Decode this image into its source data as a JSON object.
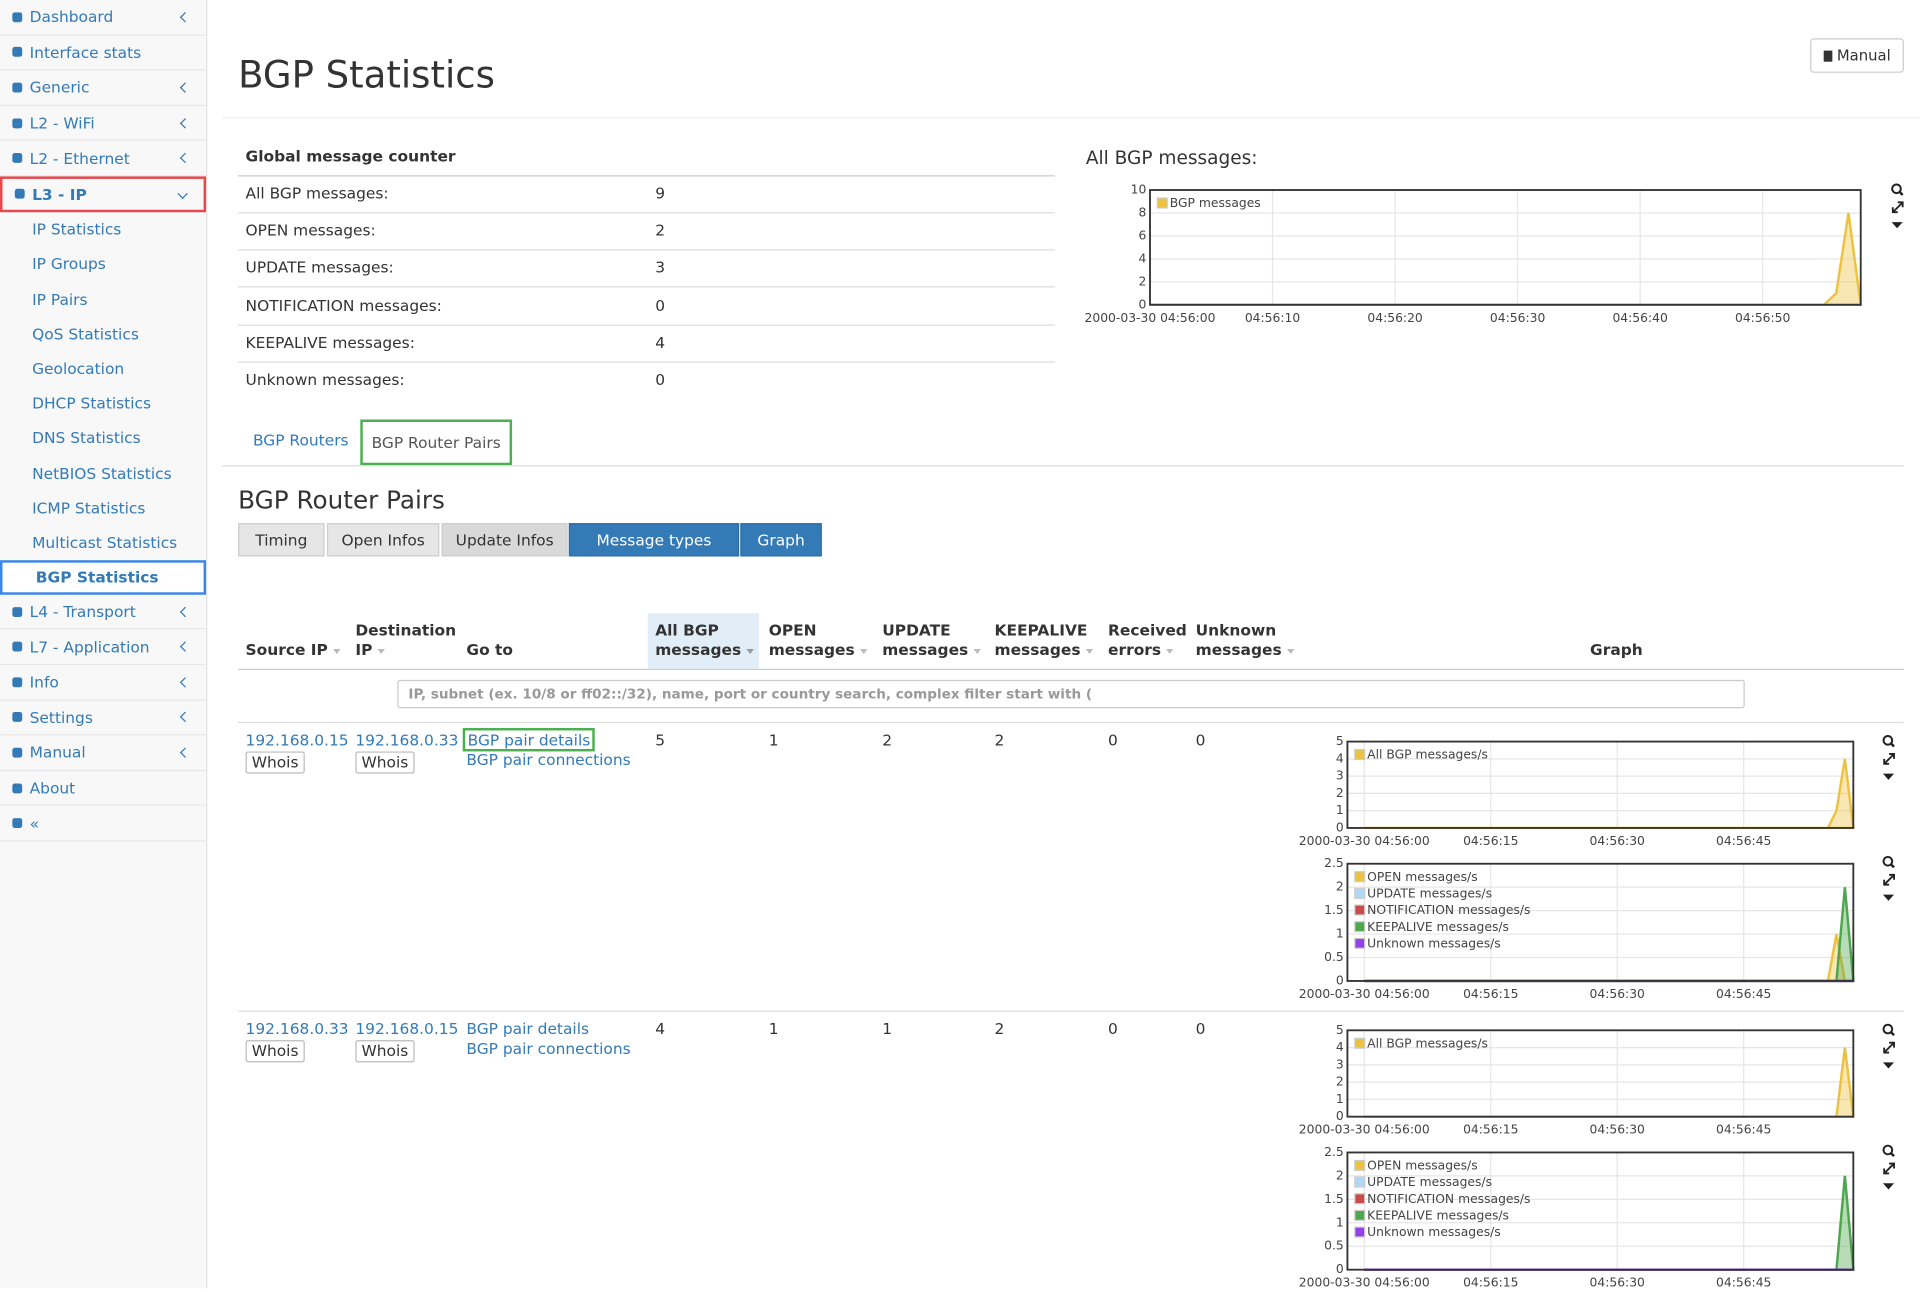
{
  "sidebar": {
    "items": [
      {
        "label": "Dashboard",
        "arrow": true
      },
      {
        "label": "Interface stats",
        "arrow": false
      },
      {
        "label": "Generic",
        "arrow": true
      },
      {
        "label": "L2 - WiFi",
        "arrow": true
      },
      {
        "label": "L2 - Ethernet",
        "arrow": true
      },
      {
        "label": "L3 - IP",
        "arrow": true,
        "expanded": true,
        "outline": "#e8474b",
        "children": [
          {
            "label": "IP Statistics"
          },
          {
            "label": "IP Groups"
          },
          {
            "label": "IP Pairs"
          },
          {
            "label": "QoS Statistics"
          },
          {
            "label": "Geolocation"
          },
          {
            "label": "DHCP Statistics"
          },
          {
            "label": "DNS Statistics"
          },
          {
            "label": "NetBIOS Statistics"
          },
          {
            "label": "ICMP Statistics"
          },
          {
            "label": "Multicast Statistics"
          },
          {
            "label": "BGP Statistics",
            "active": true,
            "outline": "#3a86e8"
          }
        ]
      },
      {
        "label": "L4 - Transport",
        "arrow": true
      },
      {
        "label": "L7 - Application",
        "arrow": true
      },
      {
        "label": "Info",
        "arrow": true
      },
      {
        "label": "Settings",
        "arrow": true
      },
      {
        "label": "Manual",
        "arrow": true
      },
      {
        "label": "About",
        "arrow": false
      },
      {
        "label": "«",
        "arrow": false
      }
    ]
  },
  "header": {
    "title": "BGP Statistics",
    "manual_button": "Manual"
  },
  "global_counter": {
    "heading": "Global message counter",
    "rows": [
      [
        "All BGP messages:",
        "9"
      ],
      [
        "OPEN messages:",
        "2"
      ],
      [
        "UPDATE messages:",
        "3"
      ],
      [
        "NOTIFICATION messages:",
        "0"
      ],
      [
        "KEEPALIVE messages:",
        "4"
      ],
      [
        "Unknown messages:",
        "0"
      ]
    ]
  },
  "global_chart": {
    "type": "area",
    "title": "All BGP messages:",
    "x": [
      0,
      55,
      56,
      57,
      58
    ],
    "xlim": [
      0,
      58
    ],
    "xticks": [
      {
        "value": 0,
        "label": "2000-03-30 04:56:00"
      },
      {
        "value": 10,
        "label": "04:56:10"
      },
      {
        "value": 20,
        "label": "04:56:20"
      },
      {
        "value": 30,
        "label": "04:56:30"
      },
      {
        "value": 40,
        "label": "04:56:40"
      },
      {
        "value": 50,
        "label": "04:56:50"
      }
    ],
    "ylim": [
      0,
      10
    ],
    "yticks": [
      0,
      2,
      4,
      6,
      8,
      10
    ],
    "grid": true,
    "series": [
      {
        "name": "BGP messages",
        "color": "#edc240",
        "values": [
          0,
          0,
          1,
          8,
          0
        ]
      }
    ]
  },
  "tabs": [
    {
      "label": "BGP Routers"
    },
    {
      "label": "BGP Router Pairs",
      "active": true,
      "outline": "#4caf50"
    }
  ],
  "section_title": "BGP Router Pairs",
  "buttons": [
    {
      "label": "Timing"
    },
    {
      "label": "Open Infos"
    },
    {
      "label": "Update Infos"
    },
    {
      "label": "Message types",
      "active": true
    },
    {
      "label": "Graph",
      "active": true
    }
  ],
  "table": {
    "columns": [
      "Source IP",
      "Destination IP",
      "Go to",
      "All BGP messages",
      "OPEN messages",
      "UPDATE messages",
      "KEEPALIVE messages",
      "Received errors",
      "Unknown messages",
      "Graph"
    ],
    "filter_placeholder": "IP, subnet (ex. 10/8 or ff02::/32), name, port or country search, complex filter start with (",
    "rows": [
      {
        "source": "192.168.0.15",
        "source_whois": "Whois",
        "destination": "192.168.0.33",
        "destination_whois": "Whois",
        "links": [
          "BGP pair details",
          "BGP pair connections"
        ],
        "counts": [
          "5",
          "1",
          "2",
          "2",
          "0",
          "0"
        ],
        "graphs": [
          {
            "type": "area",
            "x": [
              0,
              55,
              56,
              57,
              58
            ],
            "xlim": [
              -2,
              58
            ],
            "xticks": [
              {
                "value": 0,
                "label": "2000-03-30 04:56:00"
              },
              {
                "value": 15,
                "label": "04:56:15"
              },
              {
                "value": 30,
                "label": "04:56:30"
              },
              {
                "value": 45,
                "label": "04:56:45"
              }
            ],
            "ylim": [
              0,
              5
            ],
            "yticks": [
              0,
              1,
              2,
              3,
              4,
              5
            ],
            "grid": true,
            "series": [
              {
                "name": "All BGP messages/s",
                "color": "#edc240",
                "values": [
                  0,
                  0,
                  1,
                  4,
                  0
                ]
              }
            ]
          },
          {
            "type": "area",
            "x": [
              0,
              55,
              56,
              57,
              58
            ],
            "xlim": [
              -2,
              58
            ],
            "xticks": [
              {
                "value": 0,
                "label": "2000-03-30 04:56:00"
              },
              {
                "value": 15,
                "label": "04:56:15"
              },
              {
                "value": 30,
                "label": "04:56:30"
              },
              {
                "value": 45,
                "label": "04:56:45"
              }
            ],
            "ylim": [
              0,
              2.5
            ],
            "yticks": [
              0,
              0.5,
              1,
              1.5,
              2,
              2.5
            ],
            "grid": true,
            "series": [
              {
                "name": "OPEN messages/s",
                "color": "#edc240",
                "values": [
                  0,
                  0,
                  1,
                  0,
                  0
                ]
              },
              {
                "name": "UPDATE messages/s",
                "color": "#afd8f8",
                "values": [
                  0,
                  0,
                  0,
                  0,
                  0
                ]
              },
              {
                "name": "NOTIFICATION messages/s",
                "color": "#cb4b4b",
                "values": [
                  0,
                  0,
                  0,
                  0,
                  0
                ]
              },
              {
                "name": "KEEPALIVE messages/s",
                "color": "#4da74d",
                "values": [
                  0,
                  0,
                  0,
                  2,
                  0
                ]
              },
              {
                "name": "Unknown messages/s",
                "color": "#9440ed",
                "values": [
                  0,
                  0,
                  0,
                  0,
                  0
                ]
              }
            ]
          }
        ]
      },
      {
        "source": "192.168.0.33",
        "source_whois": "Whois",
        "destination": "192.168.0.15",
        "destination_whois": "Whois",
        "links": [
          "BGP pair details",
          "BGP pair connections"
        ],
        "counts": [
          "4",
          "1",
          "1",
          "2",
          "0",
          "0"
        ],
        "graphs": [
          {
            "type": "area",
            "x": [
              0,
              55,
              56,
              57,
              58
            ],
            "xlim": [
              -2,
              58
            ],
            "xticks": [
              {
                "value": 0,
                "label": "2000-03-30 04:56:00"
              },
              {
                "value": 15,
                "label": "04:56:15"
              },
              {
                "value": 30,
                "label": "04:56:30"
              },
              {
                "value": 45,
                "label": "04:56:45"
              }
            ],
            "ylim": [
              0,
              5
            ],
            "yticks": [
              0,
              1,
              2,
              3,
              4,
              5
            ],
            "grid": true,
            "series": [
              {
                "name": "All BGP messages/s",
                "color": "#edc240",
                "values": [
                  0,
                  0,
                  0,
                  4,
                  0
                ]
              }
            ]
          },
          {
            "type": "area",
            "x": [
              0,
              55,
              56,
              57,
              58
            ],
            "xlim": [
              -2,
              58
            ],
            "xticks": [
              {
                "value": 0,
                "label": "2000-03-30 04:56:00"
              },
              {
                "value": 15,
                "label": "04:56:15"
              },
              {
                "value": 30,
                "label": "04:56:30"
              },
              {
                "value": 45,
                "label": "04:56:45"
              }
            ],
            "ylim": [
              0,
              2.5
            ],
            "yticks": [
              0,
              0.5,
              1,
              1.5,
              2,
              2.5
            ],
            "grid": true,
            "series": [
              {
                "name": "OPEN messages/s",
                "color": "#edc240",
                "values": [
                  0,
                  0,
                  0,
                  0,
                  0
                ]
              },
              {
                "name": "UPDATE messages/s",
                "color": "#afd8f8",
                "values": [
                  0,
                  0,
                  0,
                  0,
                  0
                ]
              },
              {
                "name": "NOTIFICATION messages/s",
                "color": "#cb4b4b",
                "values": [
                  0,
                  0,
                  0,
                  0,
                  0
                ]
              },
              {
                "name": "KEEPALIVE messages/s",
                "color": "#4da74d",
                "values": [
                  0,
                  0,
                  0,
                  2,
                  0
                ]
              },
              {
                "name": "Unknown messages/s",
                "color": "#9440ed",
                "values": [
                  0,
                  0,
                  0,
                  0,
                  0
                ]
              }
            ]
          }
        ]
      }
    ]
  }
}
